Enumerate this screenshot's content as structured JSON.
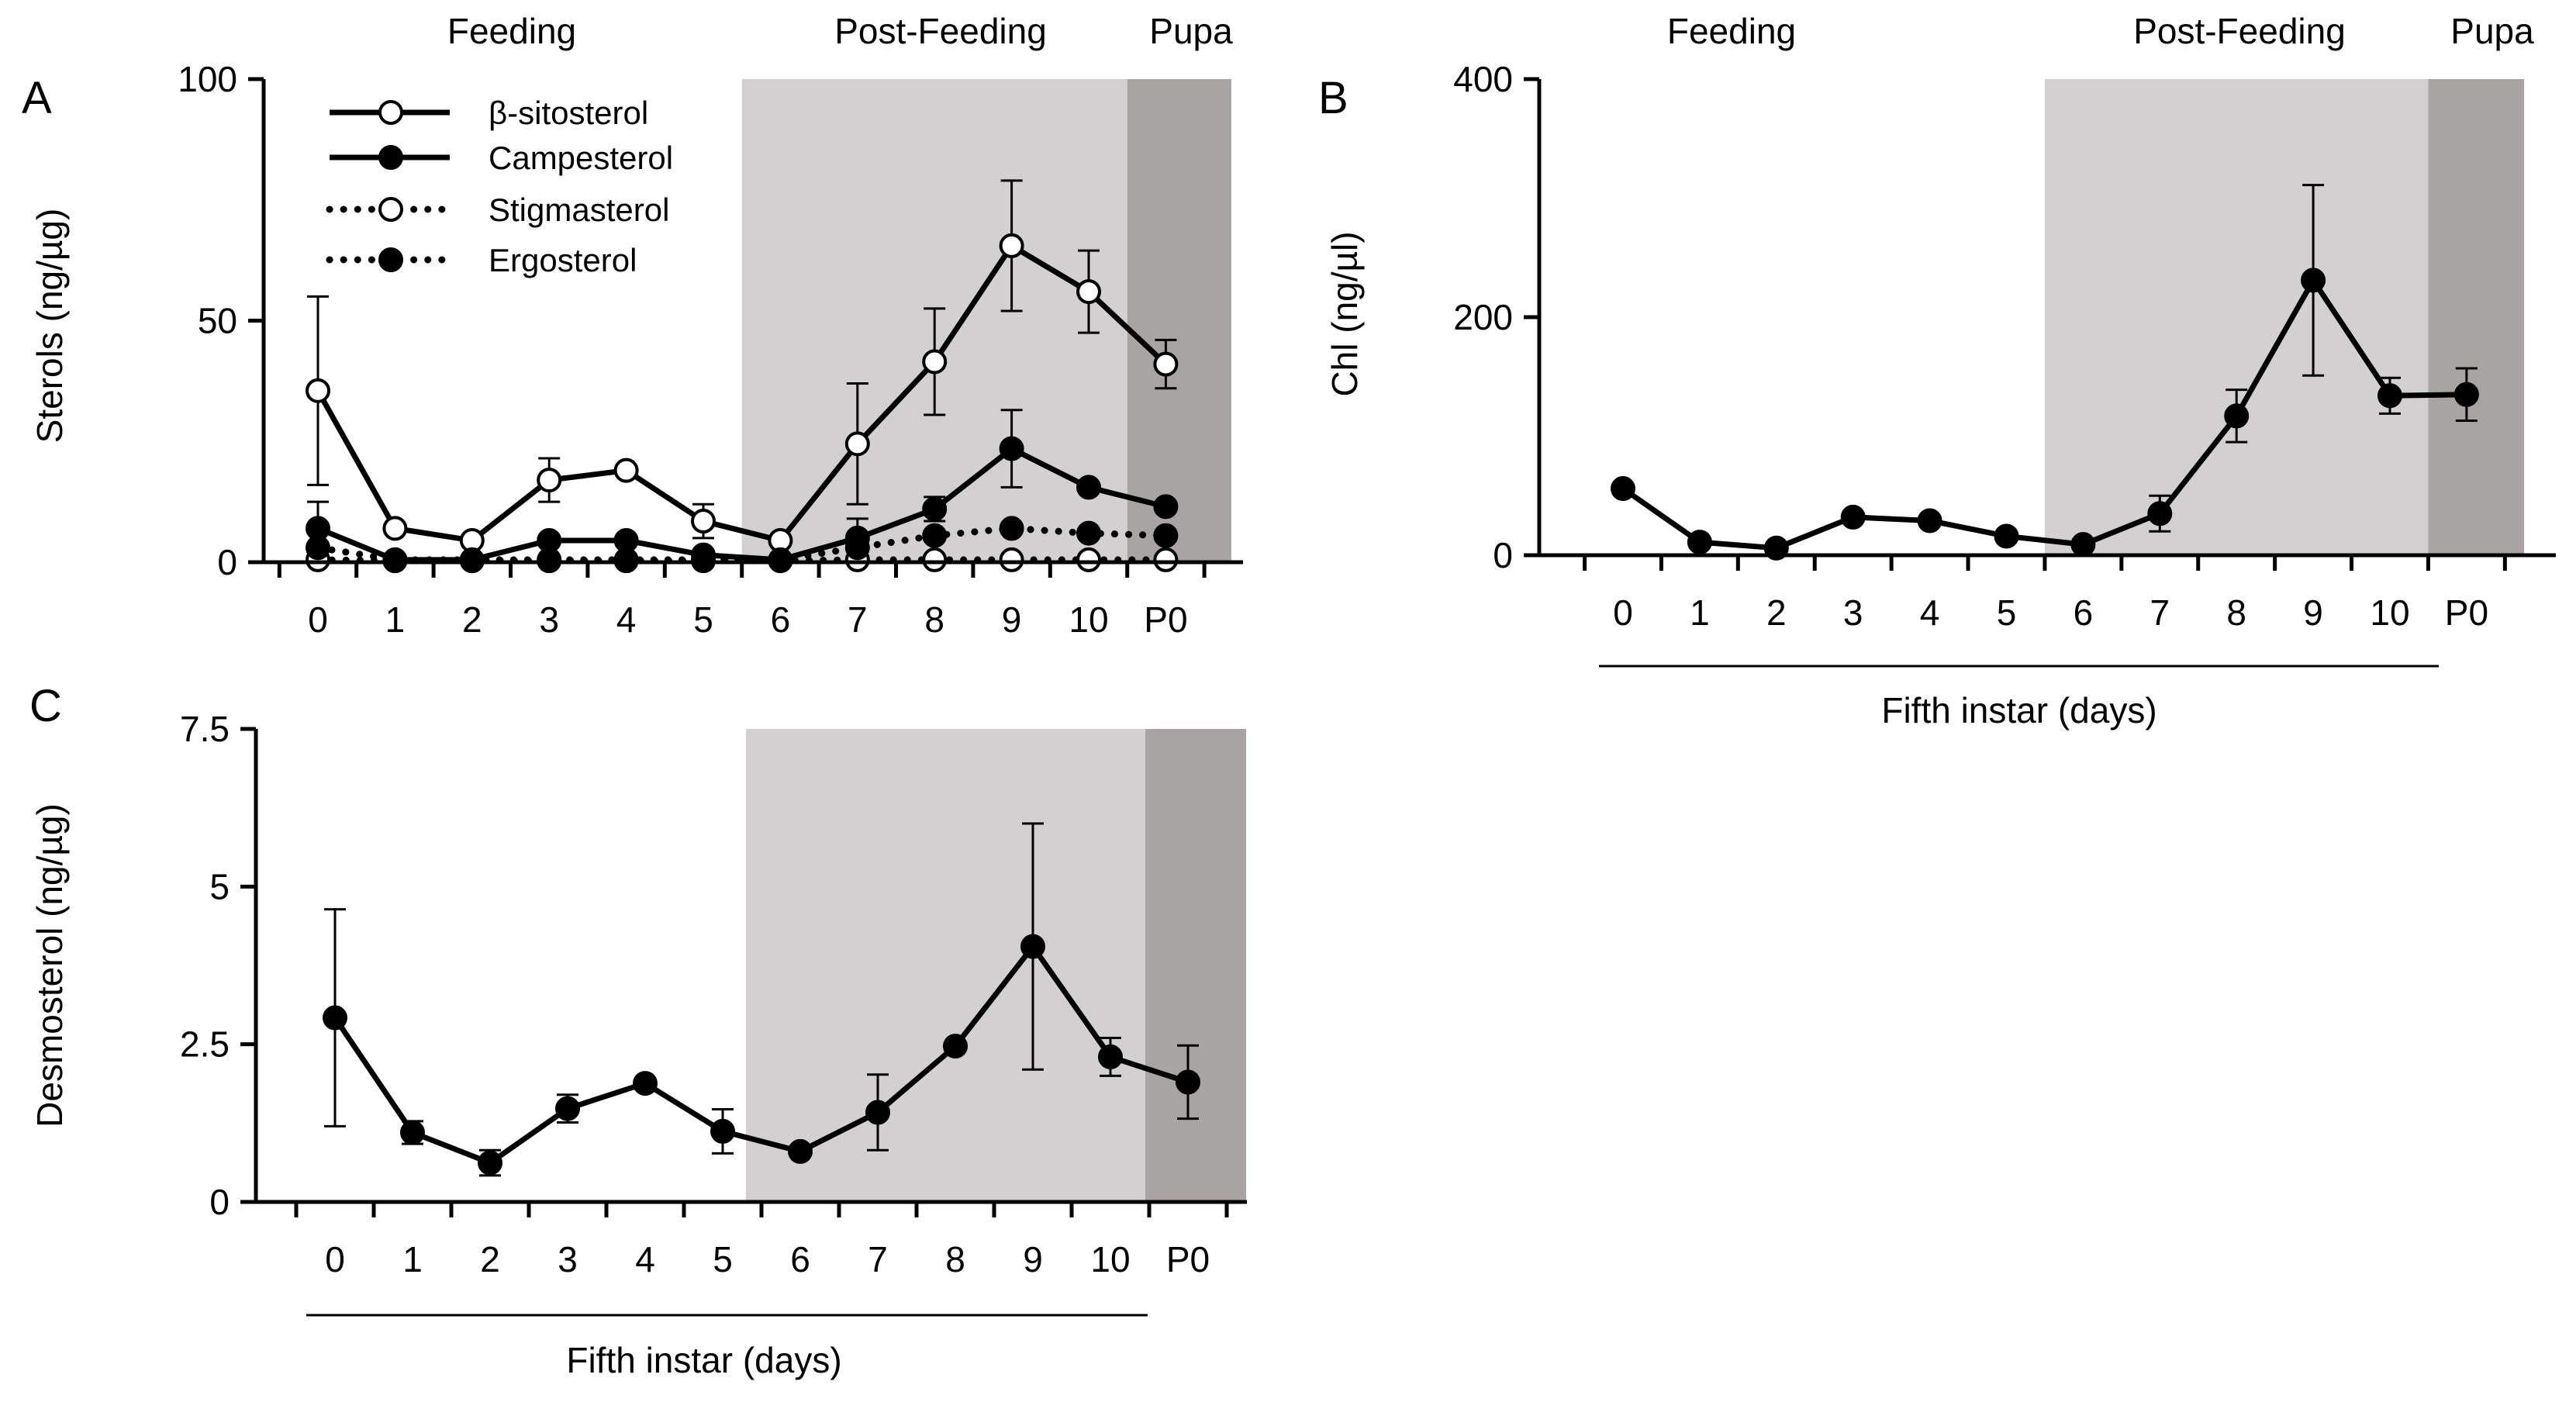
{
  "colors": {
    "postfeeding_shade": "#d3d0d1",
    "pupa_shade": "#a8a4a3",
    "line": "#000000",
    "open_marker_fill": "#ffffff",
    "closed_marker_fill": "#000000"
  },
  "chart_data": [
    {
      "panel": "A",
      "type": "line",
      "phases": {
        "feeding": "Feeding",
        "post_feeding": "Post-Feeding",
        "pupa": "Pupa"
      },
      "shading": {
        "post_feeding_start": 5.5,
        "pupa_start": 10.5,
        "end": 11.85
      },
      "categories": [
        "0",
        "1",
        "2",
        "3",
        "4",
        "5",
        "6",
        "7",
        "8",
        "9",
        "10",
        "P0"
      ],
      "ylabel": "Sterols (ng/µg)",
      "xlabel": "",
      "ylim": [
        0,
        100
      ],
      "yticks": [
        0,
        50,
        100
      ],
      "ytick_labels": [
        "0",
        "50",
        "100"
      ],
      "series": [
        {
          "name": "β-sitosterol",
          "style": "solid",
          "marker": "open",
          "values": [
            35.5,
            7,
            4.5,
            17,
            19,
            8.5,
            4.5,
            24.5,
            41.5,
            65.5,
            56,
            41
          ],
          "errors": [
            19.5,
            0,
            0,
            4.5,
            0,
            3.5,
            0,
            12.5,
            11,
            13.5,
            8.5,
            5
          ]
        },
        {
          "name": "Campesterol",
          "style": "solid",
          "marker": "filled",
          "values": [
            7,
            0.5,
            0.5,
            4.5,
            4.5,
            1.5,
            0.5,
            5,
            11,
            23.5,
            15.5,
            11.5
          ],
          "errors": [
            5.5,
            0,
            0,
            0,
            0,
            0,
            0,
            4,
            2.5,
            8,
            0,
            0
          ]
        },
        {
          "name": "Stigmasterol",
          "style": "dotted",
          "marker": "open",
          "values": [
            0.5,
            0.3,
            0.3,
            0.3,
            0.3,
            0.3,
            0.3,
            0.5,
            0.5,
            0.5,
            0.5,
            0.5
          ],
          "errors": [
            0,
            0,
            0,
            0,
            0,
            0,
            0,
            0,
            0,
            0,
            0,
            0
          ]
        },
        {
          "name": "Ergosterol",
          "style": "dotted",
          "marker": "filled",
          "values": [
            3,
            0.5,
            0.5,
            0.5,
            0.5,
            0.5,
            0.5,
            3,
            5.5,
            7,
            6,
            5.5
          ],
          "errors": [
            0,
            0,
            0,
            0,
            0,
            0,
            0,
            0,
            0,
            0,
            0,
            0
          ]
        }
      ]
    },
    {
      "panel": "B",
      "type": "line",
      "phases": {
        "feeding": "Feeding",
        "post_feeding": "Post-Feeding",
        "pupa": "Pupa"
      },
      "shading": {
        "post_feeding_start": 5.5,
        "pupa_start": 10.5,
        "end": 11.75
      },
      "categories": [
        "0",
        "1",
        "2",
        "3",
        "4",
        "5",
        "6",
        "7",
        "8",
        "9",
        "10",
        "P0"
      ],
      "ylabel": "Chl (ng/µl)",
      "xlabel": "Fifth instar (days)",
      "ylim": [
        0,
        400
      ],
      "yticks": [
        0,
        200,
        400
      ],
      "ytick_labels": [
        "0",
        "200",
        "400"
      ],
      "series": [
        {
          "name": "Chl",
          "style": "solid",
          "marker": "filled",
          "values": [
            56,
            11,
            6,
            32,
            29,
            16,
            9,
            35,
            117,
            231,
            134,
            135
          ],
          "errors": [
            0,
            0,
            0,
            0,
            0,
            0,
            0,
            15,
            22,
            80,
            15,
            22
          ]
        }
      ]
    },
    {
      "panel": "C",
      "type": "line",
      "phases": {},
      "shading": {
        "post_feeding_start": 5.3,
        "pupa_start": 10.45,
        "end": 11.75
      },
      "categories": [
        "0",
        "1",
        "2",
        "3",
        "4",
        "5",
        "6",
        "7",
        "8",
        "9",
        "10",
        "P0"
      ],
      "ylabel": "Desmosterol (ng/µg)",
      "xlabel": "Fifth instar (days)",
      "ylim": [
        0,
        7.5
      ],
      "yticks": [
        0,
        2.5,
        5,
        7.5
      ],
      "ytick_labels": [
        "0",
        "2.5",
        "5",
        "7.5"
      ],
      "series": [
        {
          "name": "Desmosterol",
          "style": "solid",
          "marker": "filled",
          "values": [
            2.92,
            1.1,
            0.62,
            1.48,
            1.88,
            1.12,
            0.8,
            1.42,
            2.47,
            4.05,
            2.3,
            1.9
          ],
          "errors": [
            1.72,
            0.18,
            0.2,
            0.22,
            0,
            0.35,
            0,
            0.6,
            0,
            1.95,
            0.3,
            0.58
          ]
        }
      ]
    }
  ]
}
